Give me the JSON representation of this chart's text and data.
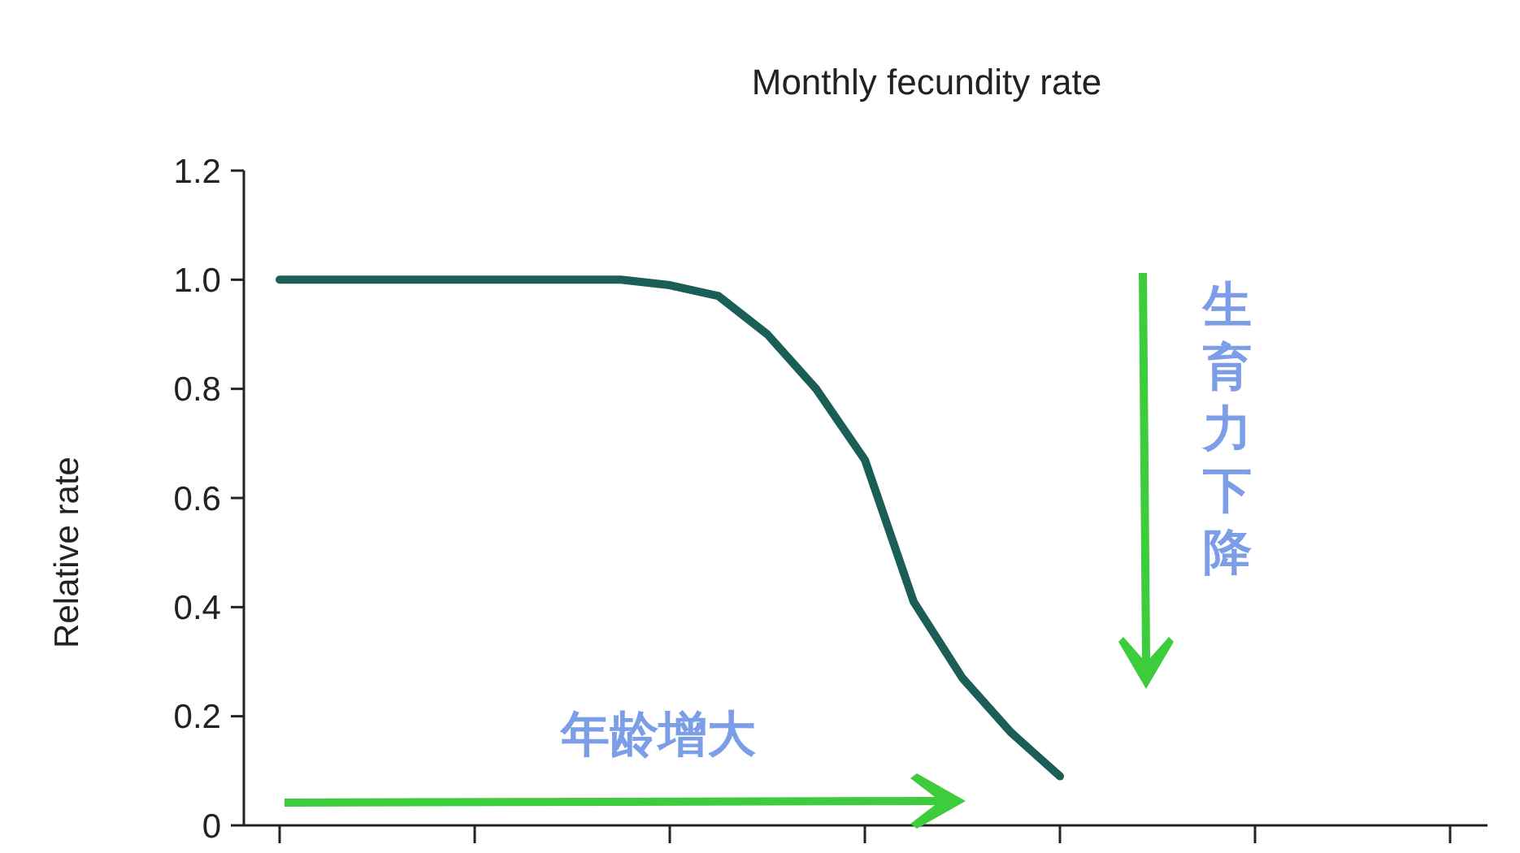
{
  "chart_data": {
    "type": "line",
    "title": "Monthly fecundity rate",
    "ylabel": "Relative rate",
    "categories": [
      null,
      null,
      null,
      null,
      null,
      null,
      null,
      null,
      null,
      null,
      null,
      null,
      null,
      null,
      null,
      null,
      null
    ],
    "series": [
      {
        "color": "#1b5e55",
        "values": [
          1.0,
          1.0,
          1.0,
          1.0,
          1.0,
          1.0,
          1.0,
          1.0,
          0.99,
          0.97,
          0.9,
          0.8,
          0.67,
          0.41,
          0.27,
          0.17,
          0.09
        ]
      }
    ],
    "ylim": [
      0,
      1.2
    ],
    "yticks": [
      0,
      0.2,
      0.4,
      0.6,
      0.8,
      {
        "value": 1,
        "label": "1.0"
      },
      1.2
    ],
    "tick_labels": "y",
    "grid": false,
    "marker": "none",
    "line_style": "solid",
    "annotations": [
      "年龄增大",
      "生育力下降"
    ]
  }
}
